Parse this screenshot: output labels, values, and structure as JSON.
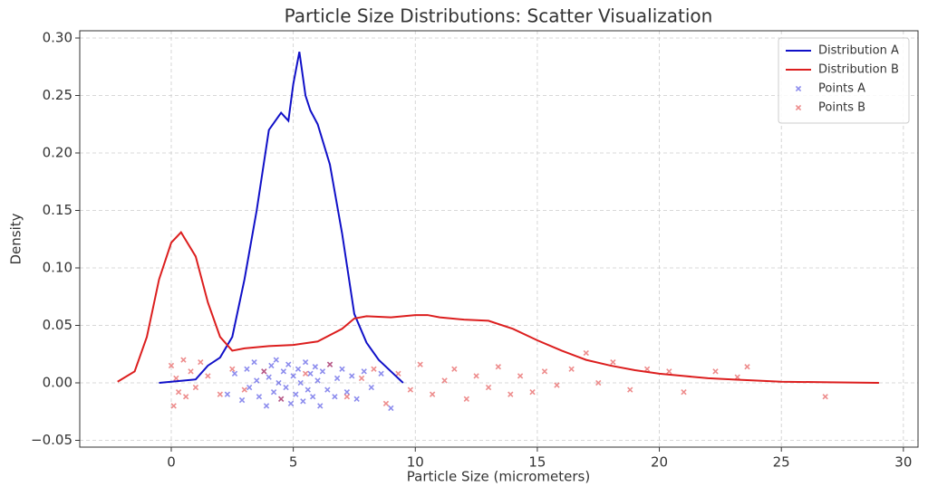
{
  "chart_data": {
    "type": "line",
    "title": "Particle Size Distributions: Scatter Visualization",
    "xlabel": "Particle Size (micrometers)",
    "ylabel": "Density",
    "xlim": [
      -3.75,
      30.6
    ],
    "ylim": [
      -0.0559,
      0.3063
    ],
    "xticks": [
      0,
      5,
      10,
      15,
      20,
      25,
      30
    ],
    "yticks": [
      {
        "value": -0.05,
        "label": "−0.05"
      },
      {
        "value": 0,
        "label": "0.00"
      },
      0.05,
      {
        "value": 0.1,
        "label": "0.10"
      },
      0.15,
      {
        "value": 0.2,
        "label": "0.20"
      },
      0.25,
      {
        "value": 0.3,
        "label": "0.30"
      }
    ],
    "grid": true,
    "legend": "upper right",
    "series": [
      {
        "name": "Distribution A",
        "type": "line",
        "color": "#1010c8",
        "x": [
          -0.5,
          0,
          0.5,
          1,
          1.5,
          2,
          2.5,
          3,
          3.5,
          4,
          4.5,
          4.8,
          5,
          5.25,
          5.5,
          5.7,
          6,
          6.5,
          7,
          7.5,
          8,
          8.5,
          9,
          9.5
        ],
        "values": [
          0,
          0.001,
          0.002,
          0.003,
          0.015,
          0.022,
          0.04,
          0.09,
          0.15,
          0.22,
          0.235,
          0.228,
          0.26,
          0.288,
          0.25,
          0.237,
          0.225,
          0.19,
          0.13,
          0.06,
          0.035,
          0.02,
          0.01,
          0
        ]
      },
      {
        "name": "Distribution B",
        "type": "line",
        "color": "#dc1e1e",
        "x": [
          -2.2,
          -1.5,
          -1,
          -0.5,
          0,
          0.4,
          1,
          1.5,
          2,
          2.5,
          3,
          4,
          5,
          6,
          7,
          7.5,
          8,
          9,
          10,
          10.5,
          11,
          12,
          13,
          14,
          15,
          16,
          17,
          18,
          19,
          20,
          21,
          22,
          23,
          25,
          27,
          29
        ],
        "values": [
          0.001,
          0.01,
          0.04,
          0.09,
          0.122,
          0.131,
          0.11,
          0.07,
          0.04,
          0.028,
          0.03,
          0.032,
          0.033,
          0.036,
          0.047,
          0.056,
          0.058,
          0.057,
          0.059,
          0.059,
          0.057,
          0.055,
          0.054,
          0.047,
          0.037,
          0.028,
          0.02,
          0.015,
          0.011,
          0.008,
          0.006,
          0.004,
          0.003,
          0.001,
          0.0005,
          0
        ]
      },
      {
        "name": "Points A",
        "type": "scatter",
        "color": "#3030e0",
        "x": [
          2.3,
          2.6,
          2.9,
          3.1,
          3.2,
          3.4,
          3.5,
          3.6,
          3.8,
          3.9,
          4.0,
          4.1,
          4.2,
          4.3,
          4.4,
          4.5,
          4.6,
          4.7,
          4.8,
          4.9,
          5.0,
          5.1,
          5.2,
          5.3,
          5.4,
          5.5,
          5.6,
          5.7,
          5.8,
          5.9,
          6.0,
          6.1,
          6.2,
          6.4,
          6.5,
          6.7,
          6.8,
          7.0,
          7.2,
          7.4,
          7.6,
          7.9,
          8.2,
          8.6,
          9.0
        ],
        "values": [
          -0.01,
          0.008,
          -0.015,
          0.012,
          -0.004,
          0.018,
          0.002,
          -0.012,
          0.01,
          -0.02,
          0.005,
          0.015,
          -0.008,
          0.02,
          0,
          -0.014,
          0.01,
          -0.004,
          0.016,
          -0.018,
          0.006,
          -0.01,
          0.012,
          0,
          -0.016,
          0.018,
          -0.006,
          0.008,
          -0.012,
          0.014,
          0.002,
          -0.02,
          0.01,
          -0.006,
          0.016,
          -0.012,
          0.004,
          0.012,
          -0.008,
          0.006,
          -0.014,
          0.01,
          -0.004,
          0.008,
          -0.022
        ]
      },
      {
        "name": "Points B",
        "type": "scatter",
        "color": "#e03030",
        "x": [
          0,
          0.1,
          0.2,
          0.3,
          0.5,
          0.6,
          0.8,
          1.0,
          1.2,
          1.5,
          2.0,
          2.5,
          3.0,
          3.8,
          4.5,
          5.5,
          6.5,
          7.2,
          7.8,
          8.3,
          8.8,
          9.3,
          9.8,
          10.2,
          10.7,
          11.2,
          11.6,
          12.1,
          12.5,
          13.0,
          13.4,
          13.9,
          14.3,
          14.8,
          15.3,
          15.8,
          16.4,
          17.0,
          17.5,
          18.1,
          18.8,
          19.5,
          20.4,
          21.0,
          22.3,
          23.2,
          23.6,
          26.8
        ],
        "values": [
          0.015,
          -0.02,
          0.004,
          -0.008,
          0.02,
          -0.012,
          0.01,
          -0.004,
          0.018,
          0.006,
          -0.01,
          0.012,
          -0.006,
          0.01,
          -0.014,
          0.008,
          0.016,
          -0.012,
          0.004,
          0.012,
          -0.018,
          0.008,
          -0.006,
          0.016,
          -0.01,
          0.002,
          0.012,
          -0.014,
          0.006,
          -0.004,
          0.014,
          -0.01,
          0.006,
          -0.008,
          0.01,
          -0.002,
          0.012,
          0.026,
          0,
          0.018,
          -0.006,
          0.012,
          0.01,
          -0.008,
          0.01,
          0.005,
          0.014,
          -0.012
        ]
      }
    ]
  }
}
